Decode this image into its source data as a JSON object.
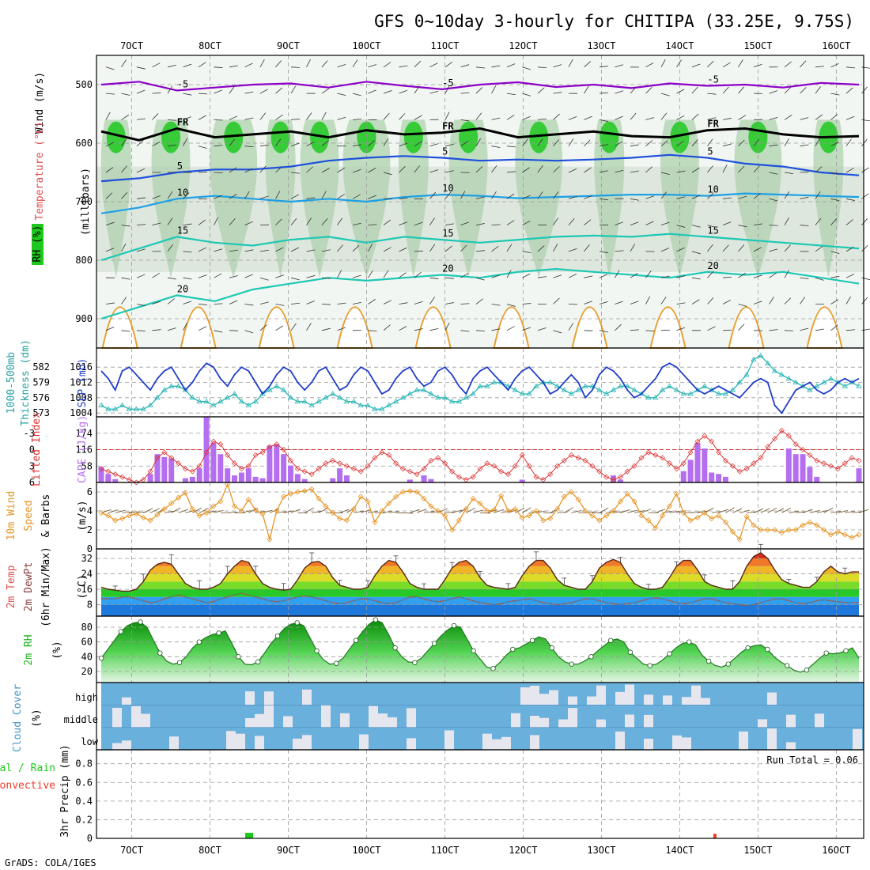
{
  "title": "GFS 0~10day 3-hourly for CHITIPA (33.25E, 9.75S)",
  "footer": "GrADS: COLA/IGES",
  "run_total": "Run Total = 0.06",
  "colors": {
    "rh_green": "#1ec81e",
    "temp_purple": "#8c00c8",
    "temp_blue": "#1e50dc",
    "temp_cyan": "#1ea0e6",
    "temp_teal": "#1ec8b4",
    "temp_orange": "#e6a032",
    "slp_blue": "#1e3cc8",
    "thick_cyan": "#28b4b4",
    "li_red": "#dc3232",
    "cape_purple": "#b46ef0",
    "wind_orange": "#e69628",
    "rh2m_green": "#1eb41e",
    "cloud_blue": "#6ab0dc",
    "precip_green": "#1ec81e",
    "precip_red": "#f03c28"
  },
  "chart_data": [
    {
      "panel": "upper_air",
      "type": "heatmap",
      "ylabel": "(millibars)",
      "ylim": [
        950,
        450
      ],
      "yticks": [
        "500",
        "600",
        "700",
        "800",
        "900"
      ],
      "xticks": [
        "7OCT",
        "8OCT",
        "9OCT",
        "10OCT",
        "11OCT",
        "12OCT",
        "13OCT",
        "14OCT",
        "15OCT",
        "16OCT"
      ],
      "legend": {
        "wind": "Wind (m/s)",
        "temperature": "Temperature (°C)",
        "rh": "RH (%)"
      },
      "temperature_levels": [
        {
          "label": "-5",
          "pressure": [
            500,
            495,
            510,
            505,
            500,
            498,
            505,
            495,
            502,
            508,
            500,
            496,
            504,
            500,
            506,
            498,
            502,
            500,
            505,
            497,
            500
          ]
        },
        {
          "label": "FR",
          "pressure": [
            580,
            595,
            575,
            590,
            585,
            580,
            590,
            578,
            585,
            582,
            575,
            590,
            585,
            580,
            588,
            590,
            578,
            575,
            585,
            590,
            588
          ]
        },
        {
          "label": "5",
          "pressure": [
            665,
            660,
            650,
            645,
            645,
            640,
            630,
            625,
            622,
            625,
            630,
            628,
            630,
            628,
            625,
            620,
            625,
            635,
            640,
            650,
            655
          ]
        },
        {
          "label": "10",
          "pressure": [
            720,
            710,
            695,
            690,
            695,
            700,
            695,
            700,
            692,
            688,
            690,
            694,
            692,
            690,
            688,
            688,
            690,
            686,
            688,
            690,
            692
          ]
        },
        {
          "label": "15",
          "pressure": [
            800,
            780,
            760,
            770,
            775,
            765,
            760,
            770,
            760,
            765,
            770,
            765,
            760,
            758,
            760,
            755,
            760,
            765,
            770,
            775,
            780
          ]
        },
        {
          "label": "20",
          "pressure": [
            900,
            880,
            860,
            870,
            850,
            840,
            830,
            835,
            830,
            825,
            830,
            820,
            815,
            820,
            825,
            830,
            820,
            825,
            820,
            830,
            840
          ]
        }
      ],
      "rh_moist_days": [
        6.8,
        7.5,
        8.3,
        8.9,
        9.4,
        10.0,
        10.6,
        11.3,
        12.2,
        13.1,
        14.0,
        15.0,
        15.9
      ]
    },
    {
      "panel": "slp_thickness",
      "type": "line",
      "ylabel_left": "1000-500mb Thickness (dm)",
      "ylabel_right": "SLP (mb)",
      "yticks_left": [
        "582",
        "579",
        "576",
        "573"
      ],
      "yticks_right": [
        "1016",
        "1012",
        "1008",
        "1004"
      ],
      "ylim": [
        1003,
        1021
      ],
      "series": [
        {
          "name": "SLP",
          "values": [
            1015,
            1013,
            1010,
            1015,
            1016,
            1014,
            1012,
            1010,
            1013,
            1015,
            1016,
            1013,
            1010,
            1012,
            1015,
            1017,
            1016,
            1013,
            1011,
            1014,
            1016,
            1015,
            1012,
            1009,
            1011,
            1014,
            1016,
            1015,
            1012,
            1010,
            1012,
            1015,
            1016,
            1013,
            1010,
            1011,
            1014,
            1016,
            1015,
            1012,
            1009,
            1010,
            1013,
            1015,
            1016,
            1013,
            1011,
            1012,
            1015,
            1016,
            1014,
            1011,
            1009,
            1013,
            1015,
            1016,
            1014,
            1012,
            1010,
            1013,
            1015,
            1016,
            1014,
            1012,
            1009,
            1010,
            1012,
            1014,
            1012,
            1008,
            1010,
            1014,
            1016,
            1015,
            1013,
            1010,
            1008,
            1009,
            1011,
            1013,
            1016,
            1017,
            1016,
            1014,
            1012,
            1010,
            1009,
            1010,
            1011,
            1010,
            1009,
            1008,
            1010,
            1012,
            1013,
            1012,
            1006,
            1004,
            1007,
            1010,
            1011,
            1012,
            1010,
            1009,
            1010,
            1012,
            1013,
            1012,
            1013
          ]
        },
        {
          "name": "Thickness",
          "values": [
            1006,
            1005,
            1005,
            1006,
            1005,
            1005,
            1005,
            1006,
            1008,
            1010,
            1011,
            1011,
            1010,
            1008,
            1007,
            1007,
            1006,
            1007,
            1008,
            1009,
            1007,
            1006,
            1007,
            1009,
            1010,
            1011,
            1010,
            1008,
            1007,
            1007,
            1006,
            1007,
            1008,
            1009,
            1008,
            1007,
            1007,
            1006,
            1006,
            1005,
            1005,
            1006,
            1007,
            1008,
            1009,
            1010,
            1010,
            1009,
            1008,
            1008,
            1007,
            1007,
            1008,
            1009,
            1011,
            1011,
            1012,
            1012,
            1011,
            1010,
            1009,
            1009,
            1011,
            1012,
            1012,
            1011,
            1010,
            1009,
            1010,
            1011,
            1011,
            1010,
            1009,
            1010,
            1011,
            1011,
            1010,
            1009,
            1008,
            1008,
            1010,
            1011,
            1010,
            1009,
            1009,
            1010,
            1011,
            1010,
            1009,
            1009,
            1010,
            1012,
            1014,
            1018,
            1019,
            1017,
            1015,
            1014,
            1013,
            1012,
            1011,
            1010,
            1011,
            1012,
            1013,
            1012,
            1011,
            1012,
            1011
          ]
        }
      ]
    },
    {
      "panel": "cape_li",
      "type": "bar",
      "ylabel_left": "Lifted Index",
      "ylabel_right": "CAPE (J/kg)",
      "yticks_left": [
        "-3",
        "0",
        "3",
        "6"
      ],
      "yticks_right": [
        "174",
        "116",
        "58"
      ],
      "li_ylim": [
        -6,
        6
      ],
      "cape_ylim": [
        0,
        232
      ],
      "cape": [
        55,
        30,
        12,
        0,
        0,
        0,
        0,
        30,
        100,
        90,
        85,
        0,
        15,
        20,
        50,
        232,
        140,
        100,
        50,
        25,
        35,
        50,
        20,
        15,
        130,
        135,
        100,
        60,
        30,
        12,
        0,
        0,
        0,
        15,
        50,
        25,
        0,
        0,
        0,
        0,
        0,
        0,
        0,
        0,
        10,
        0,
        25,
        12,
        0,
        0,
        0,
        0,
        0,
        0,
        0,
        0,
        0,
        0,
        0,
        0,
        10,
        0,
        0,
        0,
        0,
        0,
        0,
        0,
        0,
        0,
        0,
        0,
        0,
        25,
        10,
        0,
        0,
        0,
        0,
        0,
        0,
        0,
        0,
        40,
        80,
        140,
        120,
        35,
        30,
        20,
        0,
        0,
        0,
        0,
        0,
        0,
        0,
        0,
        120,
        100,
        100,
        55,
        20,
        0,
        0,
        0,
        0,
        0,
        50
      ],
      "li": [
        3.5,
        4,
        4.5,
        5,
        5.5,
        6,
        5.5,
        4,
        1.5,
        0.5,
        1.5,
        2.5,
        3.5,
        4,
        3,
        0.5,
        -1.5,
        -1,
        1,
        2.5,
        3.5,
        3,
        1,
        0.5,
        -0.5,
        -1,
        0,
        2,
        3.5,
        4,
        4.5,
        3.5,
        2.5,
        2,
        2.5,
        3,
        3.5,
        4,
        3,
        1.5,
        0.5,
        1,
        2.5,
        3.5,
        4,
        4.5,
        3.5,
        2,
        1.5,
        2.5,
        4,
        5,
        5.5,
        5,
        3.5,
        2.5,
        3,
        4,
        4.5,
        3,
        1,
        3,
        5,
        5.5,
        4.5,
        3,
        2,
        1,
        1.5,
        2,
        3,
        4,
        5,
        5.5,
        5,
        4,
        3,
        1.5,
        0.5,
        1,
        1.5,
        2.5,
        3.5,
        2.5,
        0.5,
        -1.5,
        -2.5,
        -1.5,
        0.5,
        2,
        3,
        4,
        3.5,
        2.5,
        1.5,
        -0.5,
        -2,
        -3.5,
        -2.5,
        -1,
        0,
        1,
        2,
        2.5,
        3,
        3.5,
        2.5,
        1.5,
        2
      ]
    },
    {
      "panel": "wind10m",
      "type": "line",
      "ylabel_left": "10m Wind Speed",
      "ylabel_right": "& Barbs (m/s)",
      "yticks": [
        "6",
        "4",
        "2",
        "0"
      ],
      "ylim": [
        0,
        7
      ],
      "values": [
        3.8,
        3.5,
        3.0,
        3.2,
        3.5,
        3.7,
        3.3,
        3.0,
        3.6,
        4.2,
        4.8,
        5.4,
        5.9,
        4.2,
        3.5,
        3.8,
        4.5,
        5.0,
        6.8,
        4.5,
        4.0,
        5.2,
        4.1,
        3.7,
        1.0,
        4.0,
        5.5,
        5.8,
        6.0,
        6.1,
        6.3,
        5.3,
        4.5,
        3.8,
        3.2,
        3.0,
        4.2,
        5.5,
        5.0,
        2.8,
        4.0,
        4.8,
        5.5,
        6.0,
        6.1,
        6.0,
        5.3,
        4.5,
        4.0,
        3.5,
        2.0,
        3.0,
        4.2,
        5.3,
        4.8,
        4.0,
        4.1,
        5.6,
        4.0,
        4.2,
        3.3,
        3.5,
        4.0,
        3.0,
        3.2,
        4.2,
        5.5,
        6.0,
        5.2,
        4.0,
        3.5,
        3.0,
        3.5,
        4.0,
        5.0,
        5.8,
        5.0,
        3.5,
        3.0,
        2.2,
        3.5,
        4.5,
        5.8,
        3.8,
        3.0,
        3.3,
        3.8,
        3.2,
        3.5,
        2.8,
        1.8,
        1.0,
        3.4,
        2.5,
        2.0,
        2.0,
        2.0,
        1.7,
        2.0,
        2.0,
        2.5,
        2.8,
        2.5,
        2.0,
        1.5,
        1.8,
        1.5,
        1.2,
        1.5
      ]
    },
    {
      "panel": "temp2m",
      "type": "area",
      "ylabel_left": "2m Temp 2m DewPt",
      "ylabel_right": "(6hr Min/Max) (°C)",
      "yticks": [
        "32",
        "24",
        "16",
        "8"
      ],
      "ylim": [
        2,
        37
      ],
      "temp": [
        17,
        16,
        15.5,
        15,
        15,
        16,
        20,
        26,
        29,
        30,
        29,
        24,
        19,
        17,
        16,
        16,
        17,
        19,
        24,
        28,
        31,
        30,
        24,
        19,
        17,
        16,
        15.5,
        16,
        21,
        27,
        30,
        30.5,
        28,
        22,
        18,
        17,
        16,
        16,
        17,
        23,
        28,
        31,
        30,
        25,
        19,
        17,
        16,
        16,
        16,
        21,
        27,
        30,
        31,
        28,
        22,
        18,
        17,
        16.5,
        16,
        17,
        23,
        28,
        31,
        31,
        27,
        21,
        18,
        17,
        16,
        16,
        20,
        27,
        30,
        31.5,
        30,
        24,
        19,
        17,
        16,
        16,
        17,
        22,
        28,
        31,
        31,
        26,
        20,
        18,
        17,
        16,
        16,
        20,
        28,
        33,
        35,
        32,
        26,
        21,
        19,
        18,
        17,
        17,
        20,
        25,
        28,
        25,
        24,
        25,
        25
      ],
      "dewpoint": [
        11,
        11,
        11,
        12,
        12,
        11,
        10,
        9,
        9.5,
        11,
        12,
        13,
        12,
        11,
        10,
        9,
        9.5,
        11,
        12,
        13,
        14,
        13,
        12,
        11,
        10,
        9.5,
        10,
        11,
        12,
        12.5,
        12,
        11,
        10,
        9,
        8.5,
        9,
        10,
        11,
        11,
        10,
        9,
        8.5,
        9,
        10.5,
        12,
        12,
        11,
        10,
        9.5,
        10,
        11,
        12,
        11,
        10,
        9,
        8.5,
        8,
        8.5,
        9.5,
        10,
        10.5,
        11,
        10,
        9,
        8.5,
        8,
        8.5,
        9,
        10,
        11,
        11,
        10,
        9,
        8.5,
        8,
        8.5,
        9,
        10,
        11,
        11.5,
        11,
        10,
        9,
        8.5,
        9,
        10,
        11,
        11,
        10,
        9,
        8.5,
        8,
        7.5,
        8,
        9,
        10,
        11,
        11,
        10,
        9,
        8.5,
        9,
        10,
        10.5,
        10,
        9.5,
        9,
        9,
        9
      ]
    },
    {
      "panel": "rh2m",
      "type": "area",
      "ylabel": "2m RH (%)",
      "yticks": [
        "80",
        "60",
        "40",
        "20"
      ],
      "ylim": [
        5,
        95
      ],
      "values": [
        38,
        50,
        62,
        74,
        82,
        86,
        87,
        80,
        62,
        45,
        34,
        30,
        32,
        40,
        52,
        60,
        66,
        70,
        72,
        75,
        58,
        40,
        30,
        29,
        33,
        45,
        58,
        68,
        78,
        84,
        86,
        82,
        65,
        48,
        36,
        30,
        31,
        38,
        50,
        62,
        74,
        84,
        90,
        86,
        70,
        52,
        40,
        33,
        32,
        38,
        48,
        58,
        68,
        76,
        82,
        80,
        64,
        48,
        37,
        26,
        24,
        32,
        42,
        50,
        52,
        57,
        62,
        67,
        64,
        52,
        40,
        33,
        30,
        30,
        34,
        40,
        48,
        55,
        62,
        64,
        60,
        46,
        38,
        30,
        28,
        30,
        36,
        44,
        52,
        58,
        60,
        56,
        42,
        34,
        28,
        26,
        30,
        38,
        46,
        52,
        55,
        56,
        50,
        40,
        33,
        28,
        22,
        19,
        22,
        30,
        38,
        45,
        44,
        45,
        48,
        52,
        38
      ]
    },
    {
      "panel": "cloud_cover",
      "type": "bar",
      "ylabel": "Cloud Cover (%)",
      "rows": [
        "high",
        "middle",
        "low"
      ]
    },
    {
      "panel": "precip",
      "type": "bar",
      "ylabel_left": "Total / Rain Convective",
      "ylabel_right": "3hr Precip (mm)",
      "yticks": [
        "0.8",
        "0.6",
        "0.4",
        "0.2",
        "0"
      ],
      "ylim": [
        0,
        0.95
      ],
      "total_green": [
        {
          "day": 8.5,
          "mm": 0.06
        }
      ],
      "convective_red": [
        {
          "day": 14.45,
          "mm": 0.05
        }
      ]
    }
  ],
  "labels": {
    "wind_title": "Wind (m/s)",
    "temp_title": "Temperature (°C)",
    "rh_title": "RH (%)",
    "millibars": "(millibars)",
    "thickness_title": "1000-500mb",
    "thickness_sub": "Thickness (dm)",
    "slp_title": "SLP (mb)",
    "li_title": "Lifted Index",
    "cape_title": "CAPE (J/kg)",
    "wind10_title": "10m Wind",
    "speed_title": "Speed",
    "barbs_title": "& Barbs",
    "ms_unit": "(m/s)",
    "temp2m_title": "2m Temp",
    "dew2m_title": "2m DewPt",
    "minmax_title": "(6hr Min/Max)",
    "degc_unit": "(°C)",
    "rh2m_title": "2m RH",
    "pct_unit": "(%)",
    "cloud_title": "Cloud Cover",
    "cloud_unit": "(%)",
    "cloud_high": "high",
    "cloud_middle": "middle",
    "cloud_low": "low",
    "total_rain": "tal / Rain",
    "convective": "Convective",
    "precip_title": "3hr Precip (mm)"
  }
}
